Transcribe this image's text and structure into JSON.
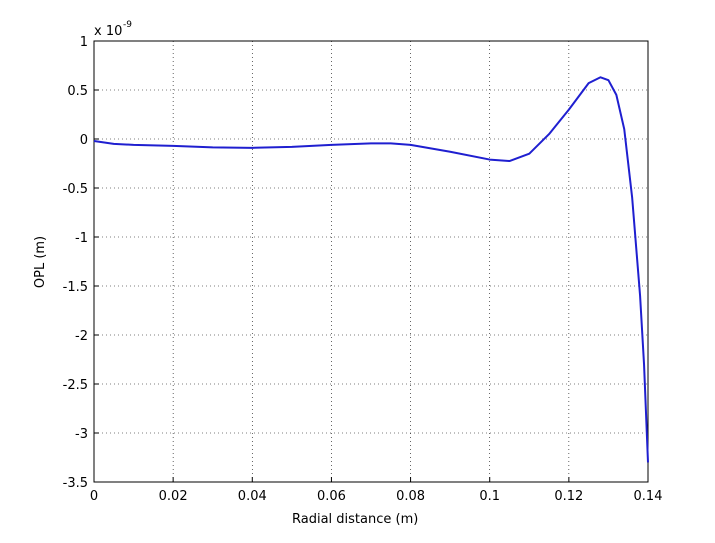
{
  "chart_data": {
    "type": "line",
    "xlabel": "Radial distance (m)",
    "ylabel": "OPL (m)",
    "y_exponent_base": "x 10",
    "y_exponent": "-9",
    "x": [
      0,
      0.005,
      0.01,
      0.02,
      0.03,
      0.04,
      0.05,
      0.06,
      0.07,
      0.075,
      0.08,
      0.09,
      0.1,
      0.105,
      0.11,
      0.115,
      0.12,
      0.125,
      0.128,
      0.13,
      0.132,
      0.134,
      0.136,
      0.138,
      0.139,
      0.14
    ],
    "series": [
      {
        "color": "#1f1fd0",
        "values": [
          -0.02,
          -0.05,
          -0.06,
          -0.07,
          -0.085,
          -0.09,
          -0.08,
          -0.06,
          -0.045,
          -0.045,
          -0.06,
          -0.13,
          -0.21,
          -0.225,
          -0.15,
          0.05,
          0.3,
          0.57,
          0.63,
          0.6,
          0.45,
          0.1,
          -0.6,
          -1.6,
          -2.3,
          -3.3
        ]
      }
    ],
    "xlim": [
      0,
      0.14
    ],
    "xticks": [
      0,
      0.02,
      0.04,
      0.06,
      0.08,
      0.1,
      0.12,
      0.14
    ],
    "ylim": [
      -3.5,
      1
    ],
    "yticks": [
      1,
      0.5,
      0,
      -0.5,
      -1,
      -1.5,
      -2,
      -2.5,
      -3,
      -3.5
    ],
    "grid": true
  }
}
